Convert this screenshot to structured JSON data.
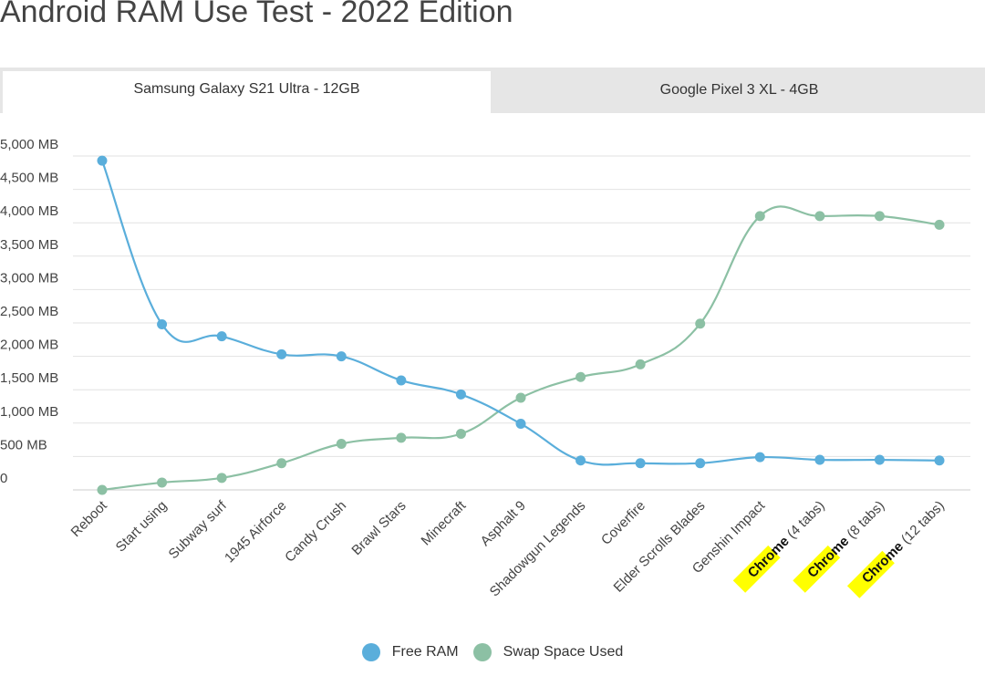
{
  "page": {
    "title": "Android RAM Use Test - 2022 Edition"
  },
  "tabs": [
    {
      "label": "Samsung Galaxy S21 Ultra - 12GB",
      "active": true
    },
    {
      "label": "Google Pixel 3 XL - 4GB",
      "active": false
    }
  ],
  "chart_data": {
    "type": "line",
    "categories": [
      "Reboot",
      "Start using",
      "Subway surf",
      "1945 Airforce",
      "Candy Crush",
      "Brawl Stars",
      "Minecraft",
      "Asphalt 9",
      "Shadowgun Legends",
      "Coverfire",
      "Elder Scrolls Blades",
      "Genshin Impact",
      "Chrome (4 tabs)",
      "Chrome (8 tabs)",
      "Chrome (12 tabs)"
    ],
    "category_highlights": {
      "12": "Chrome",
      "13": "Chrome",
      "14": "Chrome"
    },
    "highlight_color": "#ffff00",
    "y_ticks": [
      "0",
      "500 MB",
      "1,000 MB",
      "1,500 MB",
      "2,000 MB",
      "2,500 MB",
      "3,000 MB",
      "3,500 MB",
      "4,000 MB",
      "4,500 MB",
      "5,000 MB"
    ],
    "ylim": [
      0,
      5000
    ],
    "grid": true,
    "legend_position": "bottom",
    "series": [
      {
        "name": "Free RAM",
        "color": "#5aaedb",
        "values": [
          4930,
          2480,
          2300,
          2030,
          2000,
          1640,
          1430,
          990,
          440,
          400,
          400,
          490,
          450,
          450,
          440
        ]
      },
      {
        "name": "Swap Space Used",
        "color": "#8cc0a4",
        "values": [
          0,
          110,
          180,
          400,
          690,
          780,
          840,
          1380,
          1690,
          1880,
          2490,
          4100,
          4100,
          4100,
          3970
        ]
      }
    ]
  }
}
